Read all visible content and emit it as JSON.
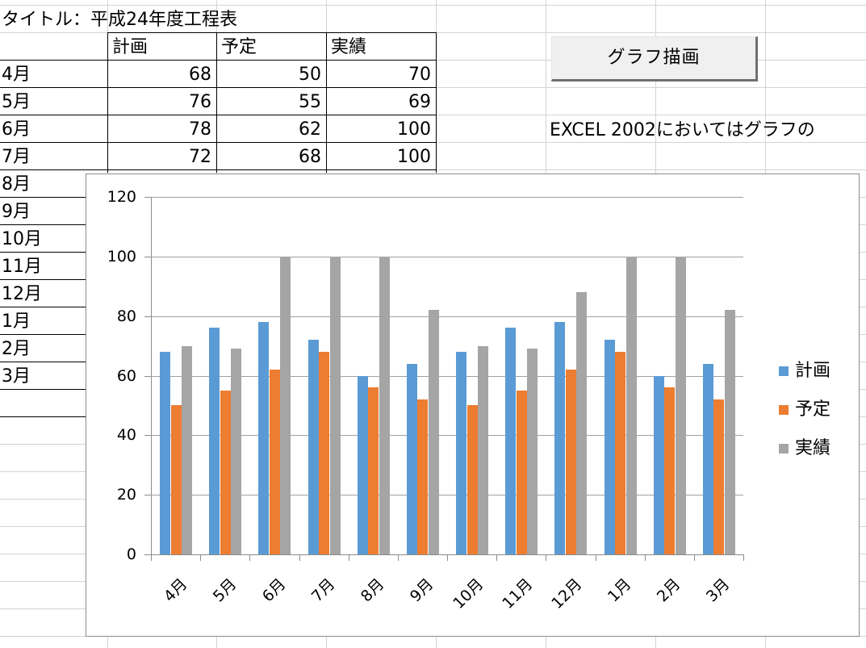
{
  "sheet": {
    "title": "タイトル：平成24年度工程表",
    "headers": [
      "",
      "計画",
      "予定",
      "実績"
    ],
    "rows": [
      {
        "month": "4月",
        "plan": "68",
        "schedule": "50",
        "actual": "70"
      },
      {
        "month": "5月",
        "plan": "76",
        "schedule": "55",
        "actual": "69"
      },
      {
        "month": "6月",
        "plan": "78",
        "schedule": "62",
        "actual": "100"
      },
      {
        "month": "7月",
        "plan": "72",
        "schedule": "68",
        "actual": "100"
      },
      {
        "month": "8月"
      },
      {
        "month": "9月"
      },
      {
        "month": "10月"
      },
      {
        "month": "11月"
      },
      {
        "month": "12月"
      },
      {
        "month": "1月"
      },
      {
        "month": "2月"
      },
      {
        "month": "3月"
      }
    ],
    "button_label": "グラフ描画",
    "note": "EXCEL 2002においてはグラフの"
  },
  "colors": {
    "plan": "#5b9bd5",
    "schedule": "#ed7d31",
    "actual": "#a5a5a5",
    "axis": "#8c8c8c",
    "gridline": "#a0a0a0"
  },
  "chart_data": {
    "type": "bar",
    "title": "",
    "xlabel": "",
    "ylabel": "",
    "categories": [
      "4月",
      "5月",
      "6月",
      "7月",
      "8月",
      "9月",
      "10月",
      "11月",
      "12月",
      "1月",
      "2月",
      "3月"
    ],
    "series": [
      {
        "name": "計画",
        "color": "#5b9bd5",
        "values": [
          68,
          76,
          78,
          72,
          60,
          64,
          68,
          76,
          78,
          72,
          60,
          64
        ]
      },
      {
        "name": "予定",
        "color": "#ed7d31",
        "values": [
          50,
          55,
          62,
          68,
          56,
          52,
          50,
          55,
          62,
          68,
          56,
          52
        ]
      },
      {
        "name": "実績",
        "color": "#a5a5a5",
        "values": [
          70,
          69,
          100,
          100,
          100,
          82,
          70,
          69,
          88,
          100,
          100,
          82
        ]
      }
    ],
    "ylim": [
      0,
      120
    ],
    "yticks": [
      0,
      20,
      40,
      60,
      80,
      100,
      120
    ],
    "grid": true,
    "legend_position": "right"
  }
}
